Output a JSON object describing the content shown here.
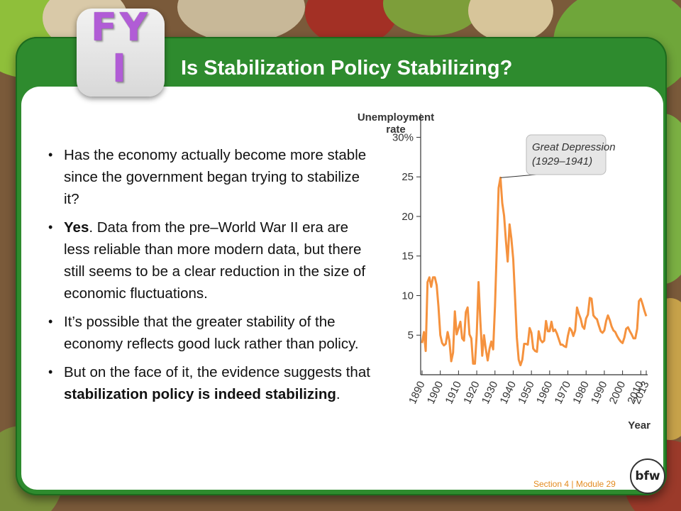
{
  "badge": {
    "text": "FY\nI"
  },
  "title": "Is Stabilization Policy Stabilizing?",
  "bullets": [
    {
      "segments": [
        {
          "text": "Has the economy actually become more stable since the government began trying to stabilize it?",
          "bold": false
        }
      ]
    },
    {
      "segments": [
        {
          "text": "Yes",
          "bold": true
        },
        {
          "text": ". Data from the pre–World War II era are less reliable than more modern data, but there still seems to be a clear reduction in the size of economic fluctuations.",
          "bold": false
        }
      ]
    },
    {
      "segments": [
        {
          "text": "It’s possible that the greater stability of the economy reflects good luck rather than policy.",
          "bold": false
        }
      ]
    },
    {
      "segments": [
        {
          "text": "But on the face of it, the evidence suggests that ",
          "bold": false
        },
        {
          "text": "stabilization policy is indeed stabilizing",
          "bold": true
        },
        {
          "text": ".",
          "bold": false
        }
      ]
    }
  ],
  "footer": "Section 4 | Module 29",
  "logo": "bfw",
  "colors": {
    "card_green": "#2e8b2e",
    "line": "#f5923e",
    "badge_text": "#b15cd6",
    "footer_text": "#e38a1e"
  },
  "chart_data": {
    "type": "line",
    "ylabel": "Unemployment\nrate",
    "xlabel": "Year",
    "ylim": [
      0,
      33
    ],
    "yticks": [
      5,
      10,
      15,
      20,
      25,
      30
    ],
    "ytick_labels": [
      "5",
      "10",
      "15",
      "20",
      "25",
      "30%"
    ],
    "xticks": [
      1890,
      1900,
      1910,
      1920,
      1930,
      1940,
      1950,
      1960,
      1970,
      1980,
      1990,
      2000,
      2010,
      2013
    ],
    "annotation": {
      "line1": "Great Depression",
      "line2": "(1929–1941)",
      "x": 1933,
      "y": 24.9
    },
    "series": [
      {
        "x": [
          1890,
          1891,
          1892,
          1893,
          1894,
          1895,
          1896,
          1897,
          1898,
          1899,
          1900,
          1901,
          1902,
          1903,
          1904,
          1905,
          1906,
          1907,
          1908,
          1909,
          1910,
          1911,
          1912,
          1913,
          1914,
          1915,
          1916,
          1917,
          1918,
          1919,
          1920,
          1921,
          1922,
          1923,
          1924,
          1925,
          1926,
          1927,
          1928,
          1929,
          1930,
          1931,
          1932,
          1933,
          1934,
          1935,
          1936,
          1937,
          1938,
          1939,
          1940,
          1941,
          1942,
          1943,
          1944,
          1945,
          1946,
          1947,
          1948,
          1949,
          1950,
          1951,
          1952,
          1953,
          1954,
          1955,
          1956,
          1957,
          1958,
          1959,
          1960,
          1961,
          1962,
          1963,
          1964,
          1965,
          1966,
          1967,
          1968,
          1969,
          1970,
          1971,
          1972,
          1973,
          1974,
          1975,
          1976,
          1977,
          1978,
          1979,
          1980,
          1981,
          1982,
          1983,
          1984,
          1985,
          1986,
          1987,
          1988,
          1989,
          1990,
          1991,
          1992,
          1993,
          1994,
          1995,
          1996,
          1997,
          1998,
          1999,
          2000,
          2001,
          2002,
          2003,
          2004,
          2005,
          2006,
          2007,
          2008,
          2009,
          2010,
          2011,
          2012,
          2013
        ],
        "values": [
          4,
          5.4,
          3,
          11.7,
          12.3,
          11.1,
          12.3,
          12.3,
          11.3,
          8.6,
          5,
          4,
          3.7,
          3.9,
          5.4,
          4.3,
          1.7,
          2.8,
          8,
          5.1,
          5.9,
          6.7,
          4.6,
          4.3,
          7.9,
          8.5,
          5.1,
          4.6,
          1.4,
          1.4,
          5.2,
          11.7,
          6.7,
          2.4,
          5,
          3.2,
          1.8,
          3.3,
          4.2,
          3.2,
          8.7,
          15.9,
          23.6,
          24.9,
          21.7,
          20.1,
          16.9,
          14.3,
          19,
          17.2,
          14.6,
          9.9,
          4.7,
          1.9,
          1.2,
          1.9,
          3.9,
          3.9,
          3.8,
          5.9,
          5.3,
          3.3,
          3,
          2.9,
          5.5,
          4.4,
          4.1,
          4.3,
          6.8,
          5.5,
          5.5,
          6.7,
          5.5,
          5.7,
          5.2,
          4.5,
          3.8,
          3.8,
          3.6,
          3.5,
          4.9,
          5.9,
          5.6,
          4.9,
          5.6,
          8.5,
          7.7,
          7.1,
          6.1,
          5.8,
          7.1,
          7.6,
          9.7,
          9.6,
          7.5,
          7.2,
          7,
          6.2,
          5.5,
          5.3,
          5.6,
          6.8,
          7.5,
          6.9,
          6.1,
          5.6,
          5.4,
          4.9,
          4.5,
          4.2,
          4,
          4.7,
          5.8,
          6,
          5.5,
          5.1,
          4.6,
          4.6,
          5.8,
          9.3,
          9.6,
          8.9,
          8.1,
          7.4
        ]
      }
    ]
  }
}
